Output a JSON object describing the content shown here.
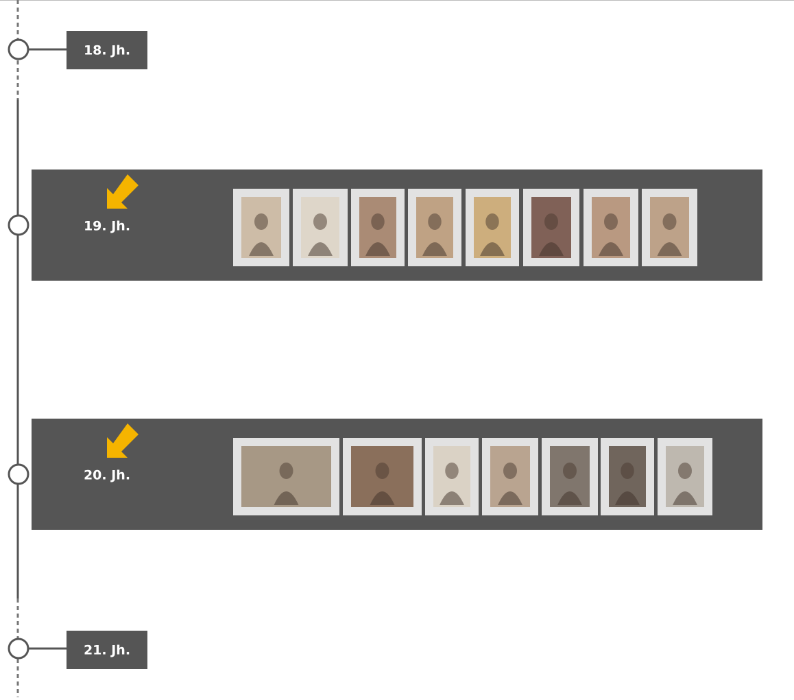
{
  "timeline": {
    "items": [
      {
        "label": "18. Jh."
      },
      {
        "label": "19. Jh."
      },
      {
        "label": "20. Jh."
      },
      {
        "label": "21. Jh."
      }
    ]
  }
}
